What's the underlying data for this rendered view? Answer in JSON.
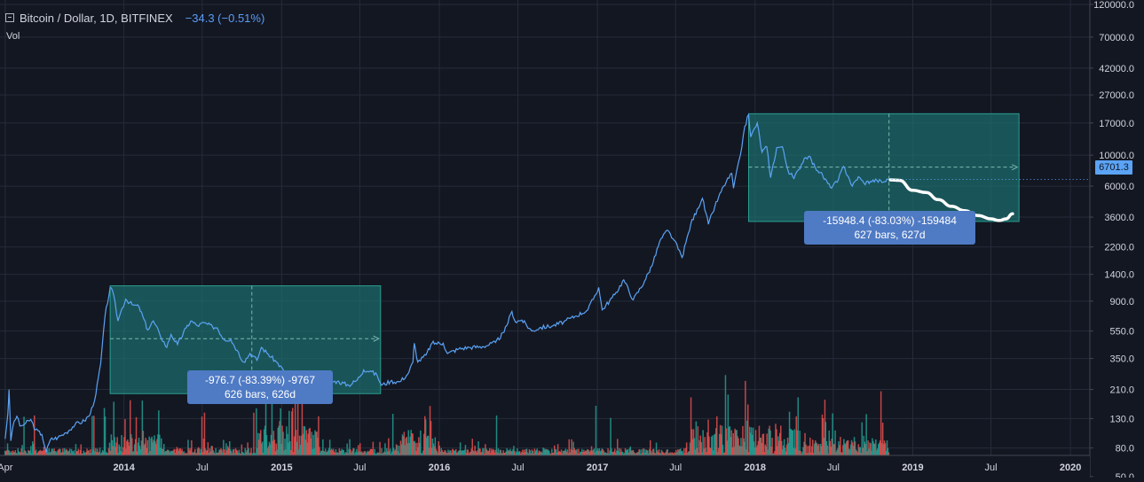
{
  "header": {
    "symbol": "Bitcoin / Dollar, 1D, BITFINEX",
    "change": "−34.3 (−0.51%)",
    "vol_label": "Vol"
  },
  "last_price_label": "6701.3",
  "colors": {
    "background": "#131722",
    "grid": "#262b3a",
    "price_line": "#5ba3f5",
    "measure_fill": "#1c6e6e",
    "measure_label_bg": "#4f7ac4",
    "projection": "#ffffff",
    "volume_up": "#26a69a",
    "volume_down": "#ef5350"
  },
  "measure_1": {
    "line1": "-976.7 (-83.39%) -9767",
    "line2": "626 bars, 626d"
  },
  "measure_2": {
    "line1": "-15948.4 (-83.03%) -159484",
    "line2": "627 bars, 627d"
  },
  "chart_data": {
    "type": "line",
    "scale": "log",
    "ylim": [
      45,
      120000
    ],
    "xlim": [
      "2013-03-20",
      "2020-02-15"
    ],
    "y_ticks": [
      {
        "value": 120000,
        "label": "120000.0"
      },
      {
        "value": 70000,
        "label": "70000.0"
      },
      {
        "value": 42000,
        "label": "42000.0"
      },
      {
        "value": 27000,
        "label": "27000.0"
      },
      {
        "value": 17000,
        "label": "17000.0"
      },
      {
        "value": 10000,
        "label": "10000.0"
      },
      {
        "value": 6000,
        "label": "6000.0"
      },
      {
        "value": 3600,
        "label": "3600.0"
      },
      {
        "value": 2200,
        "label": "2200.0"
      },
      {
        "value": 1400,
        "label": "1400.0"
      },
      {
        "value": 900,
        "label": "900.0"
      },
      {
        "value": 550,
        "label": "550.0"
      },
      {
        "value": 350,
        "label": "350.0"
      },
      {
        "value": 210,
        "label": "210.0"
      },
      {
        "value": 130,
        "label": "130.0"
      },
      {
        "value": 80,
        "label": "80.0"
      },
      {
        "value": 50,
        "label": "50.0"
      }
    ],
    "x_ticks": [
      {
        "date": "2013-04-01",
        "label": "Apr",
        "bold": false
      },
      {
        "date": "2014-01-01",
        "label": "2014",
        "bold": true
      },
      {
        "date": "2014-07-01",
        "label": "Jul",
        "bold": false
      },
      {
        "date": "2015-01-01",
        "label": "2015",
        "bold": true
      },
      {
        "date": "2015-07-01",
        "label": "Jul",
        "bold": false
      },
      {
        "date": "2016-01-01",
        "label": "2016",
        "bold": true
      },
      {
        "date": "2016-07-01",
        "label": "Jul",
        "bold": false
      },
      {
        "date": "2017-01-01",
        "label": "2017",
        "bold": true
      },
      {
        "date": "2017-07-01",
        "label": "Jul",
        "bold": false
      },
      {
        "date": "2018-01-01",
        "label": "2018",
        "bold": true
      },
      {
        "date": "2018-07-01",
        "label": "Jul",
        "bold": false
      },
      {
        "date": "2019-01-01",
        "label": "2019",
        "bold": true
      },
      {
        "date": "2019-07-01",
        "label": "Jul",
        "bold": false
      },
      {
        "date": "2020-01-01",
        "label": "2020",
        "bold": true
      }
    ],
    "last_price": 6701.3,
    "series": [
      {
        "points": [
          [
            "2013-04-01",
            93
          ],
          [
            "2013-04-07",
            140
          ],
          [
            "2013-04-10",
            210
          ],
          [
            "2013-04-14",
            90
          ],
          [
            "2013-04-18",
            110
          ],
          [
            "2013-04-22",
            125
          ],
          [
            "2013-04-28",
            135
          ],
          [
            "2013-05-05",
            115
          ],
          [
            "2013-05-15",
            118
          ],
          [
            "2013-05-30",
            128
          ],
          [
            "2013-06-10",
            108
          ],
          [
            "2013-06-25",
            100
          ],
          [
            "2013-07-05",
            75
          ],
          [
            "2013-07-15",
            92
          ],
          [
            "2013-08-01",
            95
          ],
          [
            "2013-08-20",
            103
          ],
          [
            "2013-09-10",
            118
          ],
          [
            "2013-10-01",
            125
          ],
          [
            "2013-10-15",
            140
          ],
          [
            "2013-10-28",
            195
          ],
          [
            "2013-11-08",
            320
          ],
          [
            "2013-11-18",
            700
          ],
          [
            "2013-11-30",
            1130
          ],
          [
            "2013-12-08",
            1000
          ],
          [
            "2013-12-18",
            650
          ],
          [
            "2013-12-25",
            760
          ],
          [
            "2014-01-05",
            930
          ],
          [
            "2014-01-20",
            850
          ],
          [
            "2014-02-05",
            820
          ],
          [
            "2014-02-25",
            560
          ],
          [
            "2014-03-10",
            650
          ],
          [
            "2014-03-25",
            520
          ],
          [
            "2014-04-10",
            420
          ],
          [
            "2014-04-20",
            520
          ],
          [
            "2014-05-05",
            440
          ],
          [
            "2014-05-25",
            580
          ],
          [
            "2014-06-05",
            650
          ],
          [
            "2014-06-20",
            600
          ],
          [
            "2014-07-05",
            630
          ],
          [
            "2014-07-25",
            590
          ],
          [
            "2014-08-05",
            580
          ],
          [
            "2014-08-20",
            480
          ],
          [
            "2014-09-05",
            480
          ],
          [
            "2014-09-20",
            400
          ],
          [
            "2014-10-05",
            330
          ],
          [
            "2014-10-20",
            380
          ],
          [
            "2014-11-05",
            340
          ],
          [
            "2014-11-15",
            420
          ],
          [
            "2014-12-01",
            375
          ],
          [
            "2014-12-20",
            330
          ],
          [
            "2015-01-05",
            290
          ],
          [
            "2015-01-14",
            200
          ],
          [
            "2015-01-25",
            250
          ],
          [
            "2015-02-10",
            230
          ],
          [
            "2015-03-05",
            280
          ],
          [
            "2015-03-20",
            260
          ],
          [
            "2015-04-10",
            235
          ],
          [
            "2015-05-10",
            240
          ],
          [
            "2015-06-05",
            225
          ],
          [
            "2015-06-25",
            245
          ],
          [
            "2015-07-10",
            290
          ],
          [
            "2015-07-25",
            285
          ],
          [
            "2015-08-10",
            265
          ],
          [
            "2015-08-20",
            225
          ],
          [
            "2015-09-10",
            240
          ],
          [
            "2015-10-01",
            238
          ],
          [
            "2015-10-20",
            270
          ],
          [
            "2015-11-01",
            330
          ],
          [
            "2015-11-04",
            450
          ],
          [
            "2015-11-12",
            330
          ],
          [
            "2015-12-01",
            370
          ],
          [
            "2015-12-15",
            450
          ],
          [
            "2016-01-10",
            450
          ],
          [
            "2016-01-20",
            380
          ],
          [
            "2016-02-15",
            410
          ],
          [
            "2016-03-10",
            420
          ],
          [
            "2016-04-10",
            425
          ],
          [
            "2016-05-10",
            455
          ],
          [
            "2016-05-30",
            540
          ],
          [
            "2016-06-17",
            760
          ],
          [
            "2016-06-25",
            640
          ],
          [
            "2016-07-10",
            660
          ],
          [
            "2016-08-02",
            550
          ],
          [
            "2016-08-20",
            580
          ],
          [
            "2016-09-20",
            600
          ],
          [
            "2016-10-15",
            640
          ],
          [
            "2016-11-10",
            700
          ],
          [
            "2016-12-10",
            780
          ],
          [
            "2017-01-04",
            1130
          ],
          [
            "2017-01-12",
            780
          ],
          [
            "2017-02-10",
            1000
          ],
          [
            "2017-03-03",
            1280
          ],
          [
            "2017-03-25",
            920
          ],
          [
            "2017-04-20",
            1250
          ],
          [
            "2017-05-10",
            1700
          ],
          [
            "2017-05-25",
            2400
          ],
          [
            "2017-06-12",
            2900
          ],
          [
            "2017-06-28",
            2450
          ],
          [
            "2017-07-16",
            1850
          ],
          [
            "2017-08-05",
            3200
          ],
          [
            "2017-08-20",
            4100
          ],
          [
            "2017-09-01",
            4900
          ],
          [
            "2017-09-15",
            3200
          ],
          [
            "2017-09-30",
            4300
          ],
          [
            "2017-10-20",
            6000
          ],
          [
            "2017-11-08",
            7400
          ],
          [
            "2017-11-12",
            5800
          ],
          [
            "2017-11-28",
            10000
          ],
          [
            "2017-12-08",
            16000
          ],
          [
            "2017-12-17",
            19500
          ],
          [
            "2017-12-22",
            13500
          ],
          [
            "2018-01-06",
            17000
          ],
          [
            "2018-01-17",
            10500
          ],
          [
            "2018-01-28",
            11500
          ],
          [
            "2018-02-06",
            6900
          ],
          [
            "2018-02-20",
            11300
          ],
          [
            "2018-03-05",
            11500
          ],
          [
            "2018-03-18",
            7800
          ],
          [
            "2018-04-01",
            6800
          ],
          [
            "2018-04-12",
            7900
          ],
          [
            "2018-04-25",
            9500
          ],
          [
            "2018-05-05",
            9800
          ],
          [
            "2018-05-20",
            8200
          ],
          [
            "2018-06-01",
            7500
          ],
          [
            "2018-06-24",
            5900
          ],
          [
            "2018-07-10",
            6400
          ],
          [
            "2018-07-25",
            8300
          ],
          [
            "2018-08-05",
            7000
          ],
          [
            "2018-08-14",
            6000
          ],
          [
            "2018-08-28",
            7000
          ],
          [
            "2018-09-10",
            6300
          ],
          [
            "2018-09-25",
            6500
          ],
          [
            "2018-10-10",
            6600
          ],
          [
            "2018-10-25",
            6400
          ],
          [
            "2018-11-05",
            6700
          ]
        ]
      }
    ],
    "projection": [
      [
        "2018-11-10",
        6650
      ],
      [
        "2018-12-01",
        6600
      ],
      [
        "2019-01-01",
        5600
      ],
      [
        "2019-02-01",
        5400
      ],
      [
        "2019-03-01",
        4800
      ],
      [
        "2019-04-01",
        4300
      ],
      [
        "2019-05-01",
        4000
      ],
      [
        "2019-06-01",
        3700
      ],
      [
        "2019-07-01",
        3500
      ],
      [
        "2019-07-20",
        3400
      ],
      [
        "2019-08-05",
        3500
      ],
      [
        "2019-08-20",
        3800
      ]
    ],
    "measures": [
      {
        "start": "2013-11-30",
        "end": "2015-08-18",
        "high": 1160,
        "low": 196,
        "target": 485,
        "mid": "2014-10-24"
      },
      {
        "start": "2017-12-17",
        "end": "2019-09-04",
        "high": 19800,
        "low": 3350,
        "target": 8200,
        "mid": "2018-11-07"
      }
    ],
    "volume": {
      "max": 100,
      "end": "2018-11-05"
    }
  }
}
